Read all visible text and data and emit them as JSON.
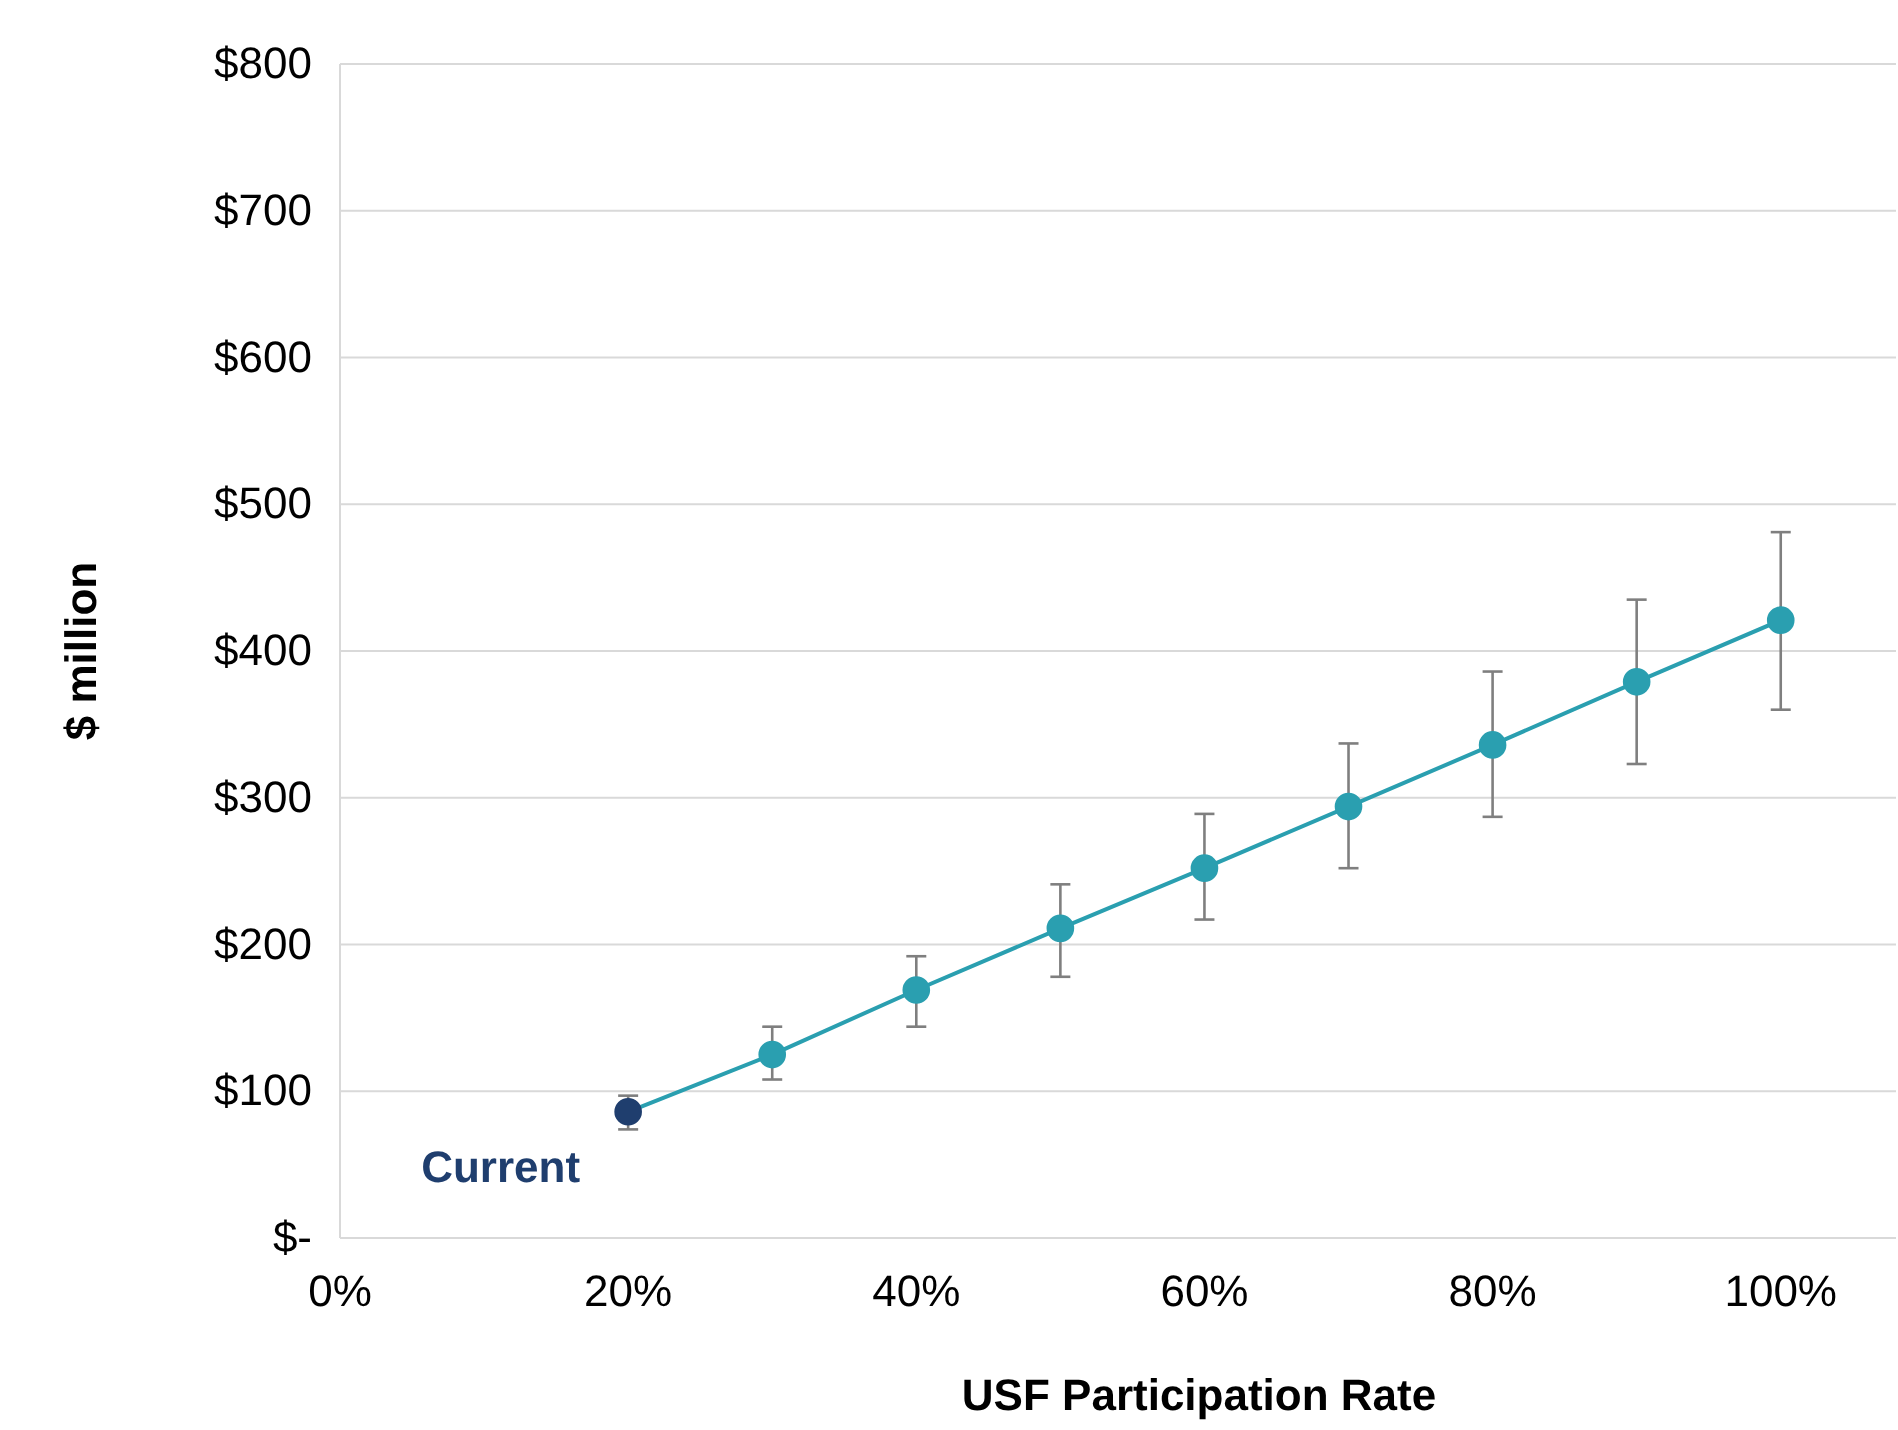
{
  "chart_data": {
    "type": "line",
    "xlabel": "USF Participation Rate",
    "ylabel": "$ million",
    "x": [
      20,
      30,
      40,
      50,
      60,
      70,
      80,
      90,
      100
    ],
    "series": [
      {
        "color": "#2a9fb0",
        "colors": [
          "#1f3e6e",
          "#2a9fb0",
          "#2a9fb0",
          "#2a9fb0",
          "#2a9fb0",
          "#2a9fb0",
          "#2a9fb0",
          "#2a9fb0",
          "#2a9fb0"
        ],
        "values": [
          86,
          125,
          169,
          211,
          252,
          294,
          336,
          379,
          421
        ],
        "errors": [
          [
            74,
            97
          ],
          [
            108,
            144
          ],
          [
            144,
            192
          ],
          [
            178,
            241
          ],
          [
            217,
            289
          ],
          [
            252,
            337
          ],
          [
            287,
            386
          ],
          [
            323,
            435
          ],
          [
            360,
            481
          ]
        ]
      }
    ],
    "xlim": [
      0,
      108
    ],
    "xticks": [
      {
        "value": 0,
        "label": "0%"
      },
      {
        "value": 20,
        "label": "20%"
      },
      {
        "value": 40,
        "label": "40%"
      },
      {
        "value": 60,
        "label": "60%"
      },
      {
        "value": 80,
        "label": "80%"
      },
      {
        "value": 100,
        "label": "100%"
      }
    ],
    "ylim": [
      0,
      800
    ],
    "yticks": [
      {
        "value": 0,
        "label": "$-"
      },
      {
        "value": 100,
        "label": "$100"
      },
      {
        "value": 200,
        "label": "$200"
      },
      {
        "value": 300,
        "label": "$300"
      },
      {
        "value": 400,
        "label": "$400"
      },
      {
        "value": 500,
        "label": "$500"
      },
      {
        "value": 600,
        "label": "$600"
      },
      {
        "value": 700,
        "label": "$700"
      },
      {
        "value": 800,
        "label": "$800"
      }
    ],
    "grid": "y",
    "marker": "circle",
    "line_style": "solid",
    "annotations": [
      {
        "text": "Current",
        "x": 20,
        "y": 86
      }
    ]
  }
}
